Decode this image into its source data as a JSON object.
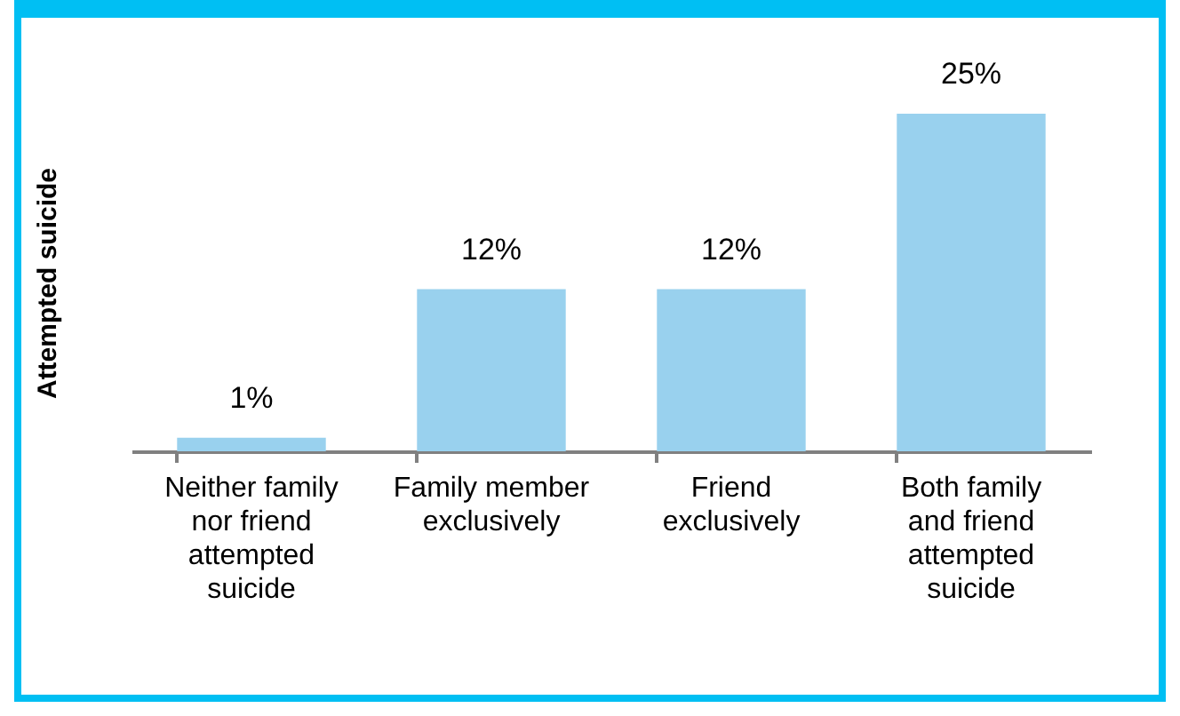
{
  "chart_data": {
    "type": "bar",
    "ylabel": "Attempted suicide",
    "categories": [
      "Neither family nor friend attempted suicide",
      "Family member exclusively",
      "Friend exclusively",
      "Both family and friend attempted suicide"
    ],
    "values": [
      1,
      12,
      12,
      25
    ],
    "color": "#99d1ee",
    "value_labels": [
      "1%",
      "12%",
      "12%",
      "25%"
    ]
  }
}
